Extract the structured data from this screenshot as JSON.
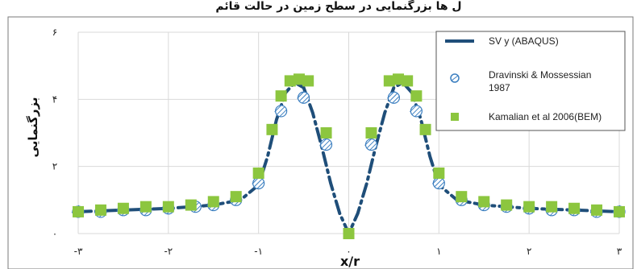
{
  "chart_data": {
    "type": "scatter",
    "title": "ل ها بزرگنمایی در سطح زمین در حالت قائم",
    "xlabel": "x/r",
    "ylabel": "بزرگنمایی",
    "xlim": [
      -3,
      3
    ],
    "ylim": [
      0,
      6
    ],
    "x_ticks": [
      {
        "value": -3,
        "label": "-۳"
      },
      {
        "value": -2,
        "label": "-۲"
      },
      {
        "value": -1,
        "label": "-۱"
      },
      {
        "value": 0,
        "label": "۰"
      },
      {
        "value": 1,
        "label": "۱"
      },
      {
        "value": 2,
        "label": "۲"
      },
      {
        "value": 3,
        "label": "۳"
      }
    ],
    "y_ticks": [
      {
        "value": 0,
        "label": "۰"
      },
      {
        "value": 2,
        "label": "۲"
      },
      {
        "value": 4,
        "label": "۴"
      },
      {
        "value": 6,
        "label": "۶"
      }
    ],
    "grid": true,
    "legend_position": "top-right",
    "series": [
      {
        "name": "SV y (ABAQUS)",
        "style": "dash-dot line",
        "color": "#1f4e79",
        "x": [
          -3,
          -2.5,
          -2,
          -1.5,
          -1.2,
          -1,
          -0.9,
          -0.8,
          -0.7,
          -0.6,
          -0.5,
          -0.4,
          -0.3,
          -0.2,
          -0.1,
          0,
          0.1,
          0.2,
          0.3,
          0.4,
          0.5,
          0.6,
          0.7,
          0.8,
          0.9,
          1,
          1.2,
          1.5,
          2,
          2.5,
          3
        ],
        "y": [
          0.65,
          0.7,
          0.75,
          0.85,
          1.0,
          1.45,
          2.3,
          3.4,
          4.2,
          4.5,
          4.35,
          3.6,
          2.6,
          1.5,
          0.6,
          0.0,
          0.6,
          1.5,
          2.6,
          3.6,
          4.35,
          4.5,
          4.2,
          3.4,
          2.3,
          1.45,
          1.0,
          0.85,
          0.75,
          0.7,
          0.65
        ]
      },
      {
        "name": "Dravinski & Mossessian 1987",
        "style": "hatched circles",
        "color": "#3c7fc0",
        "x": [
          -3,
          -2.75,
          -2.5,
          -2.25,
          -2.0,
          -1.7,
          -1.5,
          -1.25,
          -1.0,
          -0.75,
          -0.5,
          -0.25,
          0.25,
          0.5,
          0.75,
          1.0,
          1.25,
          1.5,
          1.75,
          2.0,
          2.25,
          2.5,
          2.75,
          3.0
        ],
        "y": [
          0.65,
          0.65,
          0.7,
          0.7,
          0.75,
          0.8,
          0.85,
          1.0,
          1.5,
          3.65,
          4.05,
          2.65,
          2.65,
          4.05,
          3.65,
          1.5,
          1.0,
          0.85,
          0.8,
          0.75,
          0.7,
          0.7,
          0.65,
          0.65
        ]
      },
      {
        "name": "Kamalian et al 2006(BEM)",
        "style": "filled squares",
        "color": "#8cc63f",
        "x": [
          -3,
          -2.75,
          -2.5,
          -2.25,
          -2.0,
          -1.75,
          -1.5,
          -1.25,
          -1.0,
          -0.85,
          -0.75,
          -0.65,
          -0.55,
          -0.45,
          -0.25,
          0,
          0.25,
          0.45,
          0.55,
          0.65,
          0.75,
          0.85,
          1.0,
          1.25,
          1.5,
          1.75,
          2.0,
          2.25,
          2.5,
          2.75,
          3.0
        ],
        "y": [
          0.65,
          0.7,
          0.75,
          0.8,
          0.8,
          0.85,
          0.95,
          1.1,
          1.8,
          3.1,
          4.1,
          4.55,
          4.6,
          4.55,
          3.0,
          0.0,
          3.0,
          4.55,
          4.6,
          4.55,
          4.1,
          3.1,
          1.8,
          1.1,
          0.95,
          0.85,
          0.8,
          0.8,
          0.75,
          0.7,
          0.65
        ]
      }
    ]
  }
}
